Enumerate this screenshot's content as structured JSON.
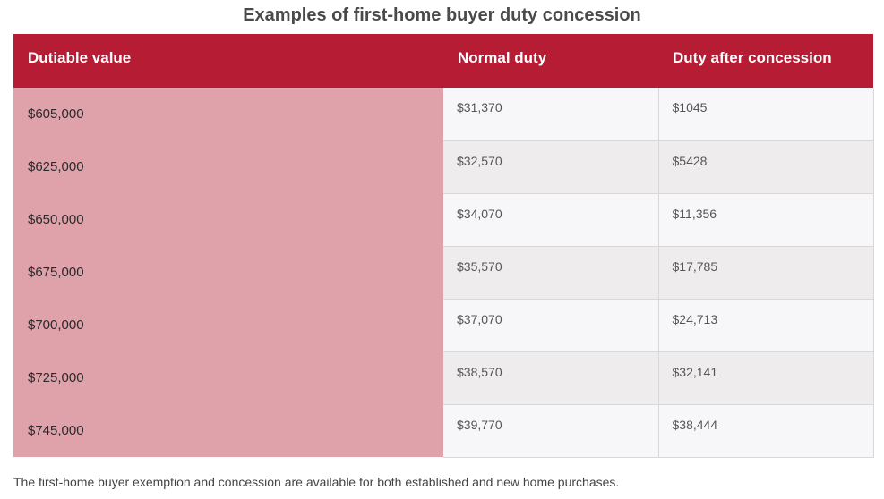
{
  "title": "Examples of first-home buyer duty concession",
  "table": {
    "headers": [
      "Dutiable value",
      "Normal duty",
      "Duty after concession"
    ],
    "rows": [
      [
        "$605,000",
        "$31,370",
        "$1045"
      ],
      [
        "$625,000",
        "$32,570",
        "$5428"
      ],
      [
        "$650,000",
        "$34,070",
        "$11,356"
      ],
      [
        "$675,000",
        "$35,570",
        "$17,785"
      ],
      [
        "$700,000",
        "$37,070",
        "$24,713"
      ],
      [
        "$725,000",
        "$38,570",
        "$32,141"
      ],
      [
        "$745,000",
        "$39,770",
        "$38,444"
      ]
    ]
  },
  "footnote": "The first-home buyer exemption and concession are available for both established and new home purchases.",
  "colors": {
    "header_bg": "#b71c35",
    "first_col_bg": "#dfa1aa"
  }
}
